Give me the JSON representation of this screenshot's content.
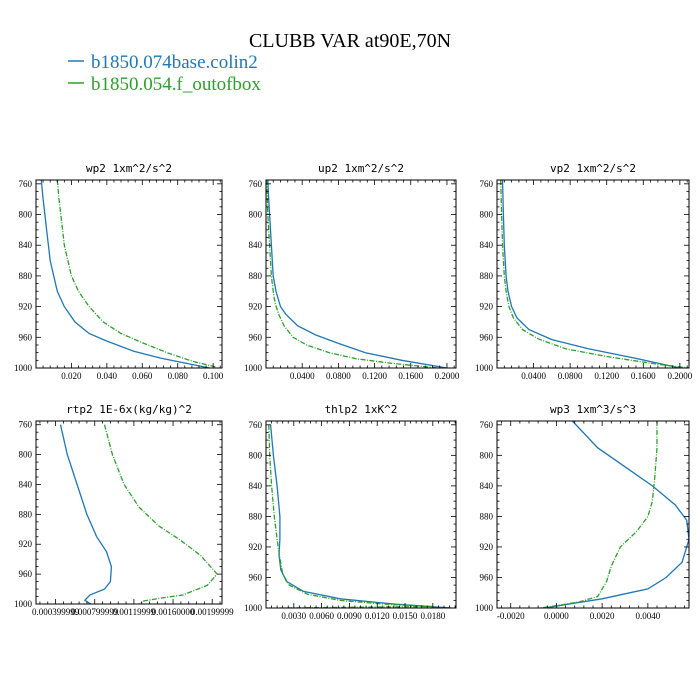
{
  "figure": {
    "title": "CLUBB VAR at90E,70N",
    "legend": [
      {
        "label": "b1850.074base.colin2",
        "color": "#1f77b4"
      },
      {
        "label": "b1850.054.f_outofbox",
        "color": "#2ca02c"
      }
    ]
  },
  "chart_data": [
    {
      "type": "line",
      "title": "wp2   1xm^2/s^2",
      "xlim": [
        0.0,
        0.105
      ],
      "ylim": [
        1000,
        755
      ],
      "yticks": [
        760,
        800,
        840,
        880,
        920,
        960,
        1000
      ],
      "xticks": [
        0.02,
        0.04,
        0.06,
        0.08,
        0.1
      ],
      "xticklabels": [
        "0.020",
        "0.040",
        "0.060",
        "0.080",
        "0.100"
      ],
      "series": [
        {
          "color": "#1f77b4",
          "style": "solid",
          "x": [
            0.003,
            0.004,
            0.005,
            0.006,
            0.007,
            0.008,
            0.01,
            0.012,
            0.016,
            0.022,
            0.03,
            0.04,
            0.055,
            0.07,
            0.085,
            0.098
          ],
          "y": [
            755,
            780,
            800,
            820,
            840,
            860,
            880,
            900,
            920,
            940,
            955,
            965,
            978,
            987,
            994,
            1000
          ]
        },
        {
          "color": "#2ca02c",
          "style": "dashdot",
          "x": [
            0.012,
            0.013,
            0.014,
            0.015,
            0.016,
            0.018,
            0.02,
            0.024,
            0.03,
            0.038,
            0.048,
            0.06,
            0.074,
            0.088,
            0.102
          ],
          "y": [
            755,
            780,
            800,
            820,
            840,
            860,
            880,
            900,
            920,
            940,
            955,
            967,
            980,
            991,
            999
          ]
        }
      ]
    },
    {
      "type": "line",
      "title": "up2   1xm^2/s^2",
      "xlim": [
        0.0,
        0.21
      ],
      "ylim": [
        1000,
        755
      ],
      "yticks": [
        760,
        800,
        840,
        880,
        920,
        960,
        1000
      ],
      "xticks": [
        0.04,
        0.08,
        0.12,
        0.16,
        0.2
      ],
      "xticklabels": [
        "0.0400",
        "0.0800",
        "0.1200",
        "0.1600",
        "0.2000"
      ],
      "series": [
        {
          "color": "#1f77b4",
          "style": "solid",
          "x": [
            0.002,
            0.003,
            0.004,
            0.006,
            0.008,
            0.011,
            0.016,
            0.022,
            0.035,
            0.055,
            0.08,
            0.11,
            0.15,
            0.2
          ],
          "y": [
            755,
            780,
            800,
            840,
            880,
            900,
            920,
            930,
            945,
            957,
            968,
            980,
            990,
            1000
          ]
        },
        {
          "color": "#2ca02c",
          "style": "dashdot",
          "x": [
            0.001,
            0.002,
            0.004,
            0.006,
            0.008,
            0.01,
            0.014,
            0.02,
            0.03,
            0.045,
            0.07,
            0.1,
            0.14,
            0.19
          ],
          "y": [
            755,
            800,
            840,
            880,
            900,
            915,
            930,
            945,
            960,
            970,
            980,
            988,
            994,
            1000
          ]
        }
      ]
    },
    {
      "type": "line",
      "title": "vp2   1xm^2/s^2",
      "xlim": [
        0.0,
        0.21
      ],
      "ylim": [
        1000,
        755
      ],
      "yticks": [
        760,
        800,
        840,
        880,
        920,
        960,
        1000
      ],
      "xticks": [
        0.04,
        0.08,
        0.12,
        0.16,
        0.2
      ],
      "xticklabels": [
        "0.0400",
        "0.0800",
        "0.1200",
        "0.1600",
        "0.2000"
      ],
      "series": [
        {
          "color": "#1f77b4",
          "style": "solid",
          "x": [
            0.006,
            0.007,
            0.008,
            0.01,
            0.012,
            0.016,
            0.022,
            0.035,
            0.06,
            0.1,
            0.15,
            0.2
          ],
          "y": [
            755,
            800,
            840,
            880,
            900,
            920,
            935,
            950,
            963,
            975,
            987,
            1000
          ]
        },
        {
          "color": "#2ca02c",
          "style": "dashdot",
          "x": [
            0.004,
            0.005,
            0.006,
            0.008,
            0.01,
            0.013,
            0.018,
            0.028,
            0.045,
            0.075,
            0.12,
            0.175,
            0.21
          ],
          "y": [
            755,
            800,
            840,
            880,
            900,
            920,
            935,
            950,
            962,
            975,
            985,
            995,
            1000
          ]
        }
      ]
    },
    {
      "type": "line",
      "title": "rtp2   1E-6x(kg/kg)^2",
      "xlim": [
        0.0002,
        0.0021
      ],
      "ylim": [
        1000,
        755
      ],
      "yticks": [
        760,
        800,
        840,
        880,
        920,
        960,
        1000
      ],
      "xticks": [
        0.00039999,
        0.00079999,
        0.00119999,
        0.0016,
        0.0019999
      ],
      "xticklabels": [
        "0.000399999",
        "0.000799999",
        "0.00119999",
        "0.00160000",
        "0.00199999"
      ],
      "series": [
        {
          "color": "#1f77b4",
          "style": "solid",
          "x": [
            0.00045,
            0.00052,
            0.00062,
            0.00072,
            0.00082,
            0.00092,
            0.00097,
            0.00096,
            0.0009,
            0.00075,
            0.0007,
            0.00076
          ],
          "y": [
            760,
            800,
            840,
            880,
            910,
            930,
            950,
            970,
            980,
            988,
            995,
            1000
          ]
        },
        {
          "color": "#2ca02c",
          "style": "dashdot",
          "x": [
            0.0009,
            0.00098,
            0.0011,
            0.00125,
            0.00145,
            0.00168,
            0.00188,
            0.00205,
            0.00195,
            0.0017,
            0.00148,
            0.0013,
            0.00125
          ],
          "y": [
            760,
            800,
            840,
            870,
            895,
            915,
            935,
            960,
            975,
            988,
            992,
            996,
            1000
          ]
        }
      ]
    },
    {
      "type": "line",
      "title": "thlp2   1xK^2",
      "xlim": [
        0.0,
        0.0205
      ],
      "ylim": [
        1000,
        755
      ],
      "yticks": [
        760,
        800,
        840,
        880,
        920,
        960,
        1000
      ],
      "xticks": [
        0.003,
        0.006,
        0.009,
        0.012,
        0.015,
        0.018
      ],
      "xticklabels": [
        "0.0030",
        "0.0060",
        "0.0090",
        "0.0120",
        "0.0150",
        "0.0180"
      ],
      "series": [
        {
          "color": "#1f77b4",
          "style": "solid",
          "x": [
            0.0005,
            0.0008,
            0.0012,
            0.0015,
            0.0015,
            0.0014,
            0.0016,
            0.0022,
            0.004,
            0.008,
            0.014,
            0.02
          ],
          "y": [
            760,
            800,
            840,
            880,
            910,
            930,
            950,
            965,
            978,
            988,
            995,
            1000
          ]
        },
        {
          "color": "#2ca02c",
          "style": "dashdot",
          "x": [
            0.0003,
            0.0004,
            0.0006,
            0.0009,
            0.0012,
            0.0015,
            0.0018,
            0.0025,
            0.0045,
            0.008,
            0.013,
            0.018,
            0.0015
          ],
          "y": [
            760,
            800,
            840,
            880,
            910,
            935,
            955,
            970,
            982,
            990,
            995,
            998,
            1000
          ]
        }
      ]
    },
    {
      "type": "line",
      "title": "wp3   1xm^3/s^3",
      "xlim": [
        -0.0026,
        0.0058
      ],
      "ylim": [
        1000,
        755
      ],
      "yticks": [
        760,
        800,
        840,
        880,
        920,
        960,
        1000
      ],
      "xticks": [
        -0.002,
        0.0,
        0.002,
        0.004
      ],
      "xticklabels": [
        "-0.0020",
        "0.0000",
        "0.0020",
        "0.0040"
      ],
      "series": [
        {
          "color": "#1f77b4",
          "style": "solid",
          "x": [
            0.0007,
            0.0018,
            0.003,
            0.0042,
            0.0052,
            0.0057,
            0.0058,
            0.0055,
            0.0048,
            0.004,
            0.002,
            0.0005,
            -0.0005
          ],
          "y": [
            755,
            790,
            815,
            840,
            865,
            885,
            910,
            940,
            960,
            975,
            988,
            995,
            1000
          ]
        },
        {
          "color": "#2ca02c",
          "style": "dashdot",
          "x": [
            0.0044,
            0.0044,
            0.0043,
            0.0042,
            0.004,
            0.0035,
            0.0028,
            0.0024,
            0.0022,
            0.0018,
            0.001,
            0.0002,
            -0.0007
          ],
          "y": [
            755,
            790,
            830,
            860,
            880,
            900,
            920,
            945,
            965,
            985,
            992,
            996,
            1000
          ]
        }
      ]
    }
  ]
}
